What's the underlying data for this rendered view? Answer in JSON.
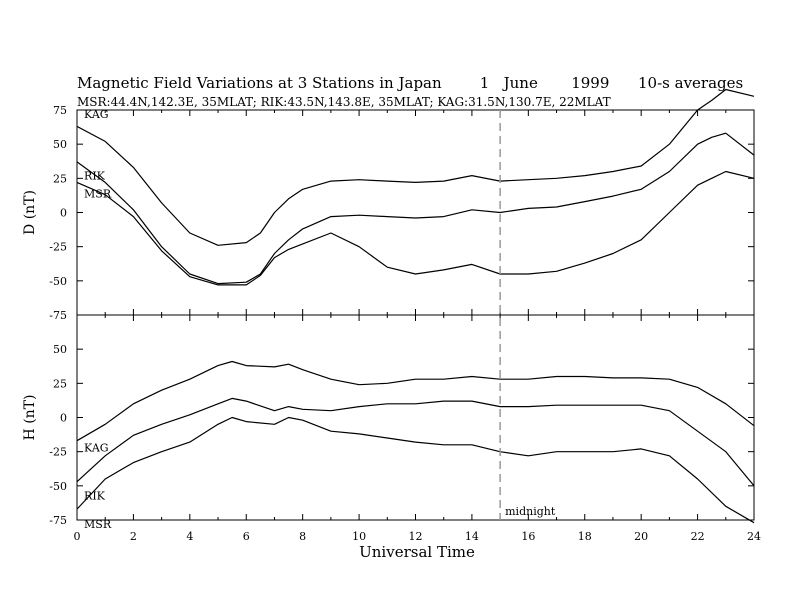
{
  "figure": {
    "title": "Magnetic Field Variations at 3 Stations in Japan        1   June       1999      10-s averages",
    "subtitle": "MSR:44.4N,142.3E, 35MLAT;  RIK:43.5N,143.8E, 35MLAT;  KAG:31.5N,130.7E, 22MLAT",
    "xlabel": "Universal Time",
    "marker_label": "midnight",
    "marker_x": 15,
    "marker_style": "dashed gray vertical line",
    "colors": {
      "axes": "#000000",
      "series": "#000000",
      "marker": "#999999"
    }
  },
  "chart_data": [
    {
      "type": "line",
      "panel": "top",
      "ylabel": "D (nT)",
      "xlim": [
        0,
        24
      ],
      "ylim": [
        -75,
        75
      ],
      "xticks": [
        "0",
        "2",
        "4",
        "6",
        "8",
        "10",
        "12",
        "14",
        "16",
        "18",
        "20",
        "22",
        "24"
      ],
      "yticks": [
        "75",
        "50",
        "25",
        "0",
        "-25",
        "-50",
        "-75"
      ],
      "x": [
        0,
        1,
        2,
        3,
        4,
        5,
        6,
        6.5,
        7,
        7.5,
        8,
        9,
        10,
        11,
        12,
        13,
        14,
        15,
        16,
        17,
        18,
        19,
        20,
        21,
        22,
        22.5,
        23,
        24
      ],
      "series": [
        {
          "name": "KAG",
          "values": [
            63,
            52,
            33,
            7,
            -15,
            -24,
            -22,
            -15,
            0,
            10,
            17,
            23,
            24,
            23,
            22,
            23,
            27,
            23,
            24,
            25,
            27,
            30,
            34,
            50,
            75,
            82,
            90,
            85
          ]
        },
        {
          "name": "RIK",
          "values": [
            37,
            22,
            2,
            -25,
            -45,
            -52,
            -51,
            -45,
            -30,
            -20,
            -12,
            -3,
            -2,
            -3,
            -4,
            -3,
            2,
            0,
            3,
            4,
            8,
            12,
            17,
            30,
            50,
            55,
            58,
            42
          ]
        },
        {
          "name": "MSR",
          "values": [
            22,
            13,
            -3,
            -28,
            -47,
            -53,
            -53,
            -46,
            -33,
            -27,
            -23,
            -15,
            -25,
            -40,
            -45,
            -42,
            -38,
            -45,
            -45,
            -43,
            -37,
            -30,
            -20,
            0,
            20,
            25,
            30,
            25
          ]
        }
      ]
    },
    {
      "type": "line",
      "panel": "bottom",
      "ylabel": "H (nT)",
      "xlim": [
        0,
        24
      ],
      "ylim": [
        -75,
        75
      ],
      "xticks": [
        "0",
        "2",
        "4",
        "6",
        "8",
        "10",
        "12",
        "14",
        "16",
        "18",
        "20",
        "22",
        "24"
      ],
      "yticks": [
        "50",
        "25",
        "0",
        "-25",
        "-50",
        "-75"
      ],
      "x": [
        0,
        1,
        2,
        3,
        4,
        5,
        5.5,
        6,
        7,
        7.5,
        8,
        9,
        10,
        11,
        12,
        13,
        14,
        15,
        16,
        17,
        18,
        19,
        20,
        21,
        22,
        23,
        24
      ],
      "series": [
        {
          "name": "KAG",
          "values": [
            -17,
            -5,
            10,
            20,
            28,
            38,
            41,
            38,
            37,
            39,
            35,
            28,
            24,
            25,
            28,
            28,
            30,
            28,
            28,
            30,
            30,
            29,
            29,
            28,
            22,
            10,
            -6
          ]
        },
        {
          "name": "RIK",
          "values": [
            -47,
            -28,
            -13,
            -5,
            2,
            10,
            14,
            12,
            5,
            8,
            6,
            5,
            8,
            10,
            10,
            12,
            12,
            8,
            8,
            9,
            9,
            9,
            9,
            5,
            -10,
            -25,
            -50
          ]
        },
        {
          "name": "MSR",
          "values": [
            -67,
            -45,
            -33,
            -25,
            -18,
            -5,
            0,
            -3,
            -5,
            0,
            -2,
            -10,
            -12,
            -15,
            -18,
            -20,
            -20,
            -25,
            -28,
            -25,
            -25,
            -25,
            -23,
            -28,
            -45,
            -65,
            -77
          ]
        }
      ]
    }
  ]
}
